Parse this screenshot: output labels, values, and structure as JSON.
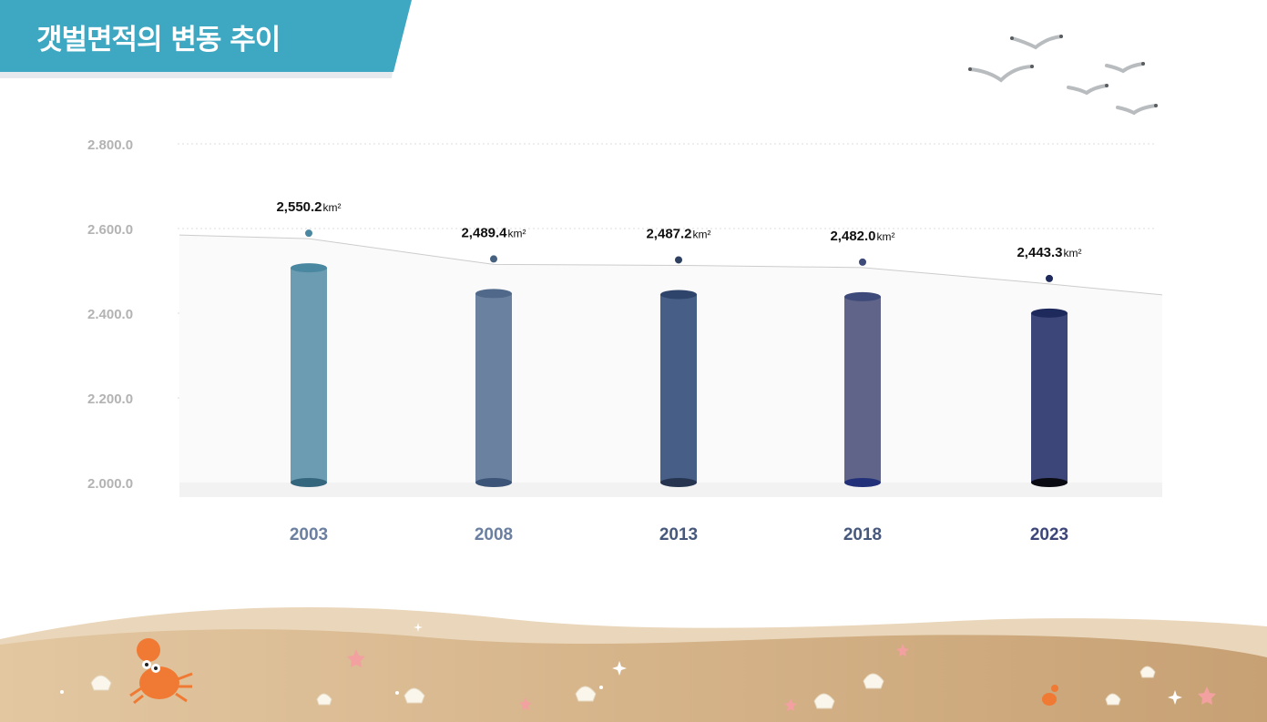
{
  "header": {
    "title": "갯벌면적의 변동 추이"
  },
  "colors": {
    "banner": "#3ea7c2",
    "banner_shadow": "#e3e8ec",
    "bars": [
      "#6b9cb1",
      "#6b81a0",
      "#475f86",
      "#5f6488",
      "#3d4679"
    ],
    "bar_tops": [
      "#4a87a0",
      "#50688a",
      "#2f446a",
      "#3d4a7a",
      "#1f2a5c"
    ],
    "bar_bottoms": [
      "#34667e",
      "#3c5478",
      "#26344f",
      "#22307a",
      "#0a0a12"
    ],
    "dots": [
      "#4a87a0",
      "#46607f",
      "#2d4062",
      "#3d4a7a",
      "#1f2a5c"
    ],
    "categories": [
      "#6b7fa0",
      "#6b7fa0",
      "#46587c",
      "#46587c",
      "#3d4679"
    ]
  },
  "chart_data": {
    "type": "bar",
    "categories": [
      "2003",
      "2008",
      "2013",
      "2018",
      "2023"
    ],
    "values": [
      2550.2,
      2489.4,
      2487.2,
      2482.0,
      2443.3
    ],
    "value_labels": [
      "2,550.2",
      "2,489.4",
      "2,487.2",
      "2,482.0",
      "2,443.3"
    ],
    "unit": "km²",
    "y_ticks": [
      "2.800.0",
      "2.600.0",
      "2.400.0",
      "2.200.0",
      "2.000.0"
    ],
    "ylim": [
      2000,
      2800
    ],
    "grid": true,
    "xlabel": "",
    "ylabel": ""
  }
}
